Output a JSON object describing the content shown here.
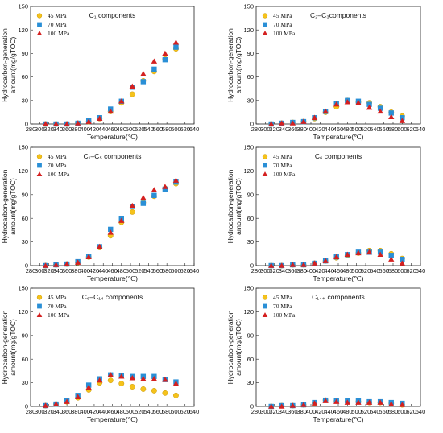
{
  "chart_data": [
    {
      "type": "scatter",
      "title": "C₁ components",
      "xlabel": "Temperature(℃)",
      "ylabel": [
        "Hydrocarbon-generation",
        "amount(mg/gTOC)"
      ],
      "xlim": [
        280,
        640
      ],
      "ylim": [
        0,
        150
      ],
      "xticks": [
        280,
        300,
        320,
        340,
        360,
        380,
        400,
        420,
        440,
        460,
        480,
        500,
        520,
        540,
        560,
        580,
        600,
        620,
        640
      ],
      "yticks": [
        0,
        30,
        60,
        90,
        120,
        150
      ],
      "legend": "top-left",
      "series": [
        {
          "name": "45 MPa",
          "marker": "circle",
          "color": "#f5c21b",
          "x": [
            313,
            336,
            360,
            384,
            408,
            432,
            456,
            480,
            504,
            528,
            552,
            576,
            600
          ],
          "y": [
            0,
            0,
            0,
            1,
            3,
            7,
            16,
            27,
            38,
            55,
            67,
            83,
            96
          ]
        },
        {
          "name": "70 MPa",
          "marker": "square",
          "color": "#2a8fd6",
          "x": [
            313,
            336,
            360,
            384,
            408,
            432,
            456,
            480,
            504,
            528,
            552,
            576,
            600
          ],
          "y": [
            0,
            0,
            0,
            1,
            4,
            8,
            19,
            29,
            47,
            54,
            70,
            82,
            98
          ]
        },
        {
          "name": "100 MPa",
          "marker": "triangle",
          "color": "#d42020",
          "x": [
            313,
            336,
            360,
            384,
            408,
            432,
            456,
            480,
            504,
            528,
            552,
            576,
            600
          ],
          "y": [
            0,
            0,
            0,
            1,
            3,
            7,
            16,
            29,
            48,
            64,
            80,
            90,
            104
          ]
        }
      ]
    },
    {
      "type": "scatter",
      "title": "C₂–C₃components",
      "xlabel": "Temperature(℃)",
      "ylabel": [
        "Hydrocarbon-generation",
        "amount(mg/gTOC)"
      ],
      "xlim": [
        280,
        640
      ],
      "ylim": [
        0,
        150
      ],
      "xticks": [
        280,
        300,
        320,
        340,
        360,
        380,
        400,
        420,
        440,
        460,
        480,
        500,
        520,
        540,
        560,
        580,
        600,
        620,
        640
      ],
      "yticks": [
        0,
        30,
        60,
        90,
        120,
        150
      ],
      "legend": "top-left",
      "series": [
        {
          "name": "45 MPa",
          "marker": "circle",
          "color": "#f5c21b",
          "x": [
            313,
            336,
            360,
            384,
            408,
            432,
            456,
            480,
            504,
            528,
            552,
            576,
            600
          ],
          "y": [
            0,
            1,
            2,
            3,
            7,
            15,
            22,
            30,
            28,
            27,
            22,
            15,
            10
          ]
        },
        {
          "name": "70 MPa",
          "marker": "square",
          "color": "#2a8fd6",
          "x": [
            313,
            336,
            360,
            384,
            408,
            432,
            456,
            480,
            504,
            528,
            552,
            576,
            600
          ],
          "y": [
            0,
            1,
            2,
            3,
            8,
            16,
            26,
            30,
            29,
            25,
            20,
            14,
            8
          ]
        },
        {
          "name": "100 MPa",
          "marker": "triangle",
          "color": "#d42020",
          "x": [
            313,
            336,
            360,
            384,
            408,
            432,
            456,
            480,
            504,
            528,
            552,
            576,
            600
          ],
          "y": [
            0,
            1,
            1,
            3,
            8,
            16,
            25,
            28,
            27,
            21,
            16,
            9,
            4
          ]
        }
      ]
    },
    {
      "type": "scatter",
      "title": "C₁–C₅ components",
      "xlabel": "Temperature(℃)",
      "ylabel": [
        "Hydrocarbon-generation",
        "amount(mg/gTOC)"
      ],
      "xlim": [
        280,
        640
      ],
      "ylim": [
        0,
        150
      ],
      "xticks": [
        280,
        300,
        320,
        340,
        360,
        380,
        400,
        420,
        440,
        460,
        480,
        500,
        520,
        540,
        560,
        580,
        600,
        620,
        640
      ],
      "yticks": [
        0,
        30,
        60,
        90,
        120,
        150
      ],
      "legend": "top-left",
      "series": [
        {
          "name": "45 MPa",
          "marker": "circle",
          "color": "#f5c21b",
          "x": [
            313,
            336,
            360,
            384,
            408,
            432,
            456,
            480,
            504,
            528,
            552,
            576,
            600
          ],
          "y": [
            0,
            1,
            2,
            4,
            11,
            23,
            38,
            55,
            68,
            80,
            88,
            98,
            104
          ]
        },
        {
          "name": "70 MPa",
          "marker": "square",
          "color": "#2a8fd6",
          "x": [
            313,
            336,
            360,
            384,
            408,
            432,
            456,
            480,
            504,
            528,
            552,
            576,
            600
          ],
          "y": [
            0,
            1,
            2,
            5,
            12,
            24,
            46,
            59,
            75,
            79,
            89,
            97,
            106
          ]
        },
        {
          "name": "100 MPa",
          "marker": "triangle",
          "color": "#d42020",
          "x": [
            313,
            336,
            360,
            384,
            408,
            432,
            456,
            480,
            504,
            528,
            552,
            576,
            600
          ],
          "y": [
            0,
            1,
            2,
            4,
            11,
            24,
            42,
            57,
            76,
            86,
            96,
            100,
            108
          ]
        }
      ]
    },
    {
      "type": "scatter",
      "title": "C₆ components",
      "xlabel": "Temperature(℃)",
      "ylabel": [
        "Hydrocarbon-generation",
        "amount(mg/gTOC)"
      ],
      "xlim": [
        280,
        640
      ],
      "ylim": [
        0,
        150
      ],
      "xticks": [
        280,
        300,
        320,
        340,
        360,
        380,
        400,
        420,
        440,
        460,
        480,
        500,
        520,
        540,
        560,
        580,
        600,
        620,
        640
      ],
      "yticks": [
        0,
        30,
        60,
        90,
        120,
        150
      ],
      "legend": "top-left",
      "series": [
        {
          "name": "45 MPa",
          "marker": "circle",
          "color": "#f5c21b",
          "x": [
            313,
            336,
            360,
            384,
            408,
            432,
            456,
            480,
            504,
            528,
            552,
            576,
            600
          ],
          "y": [
            0,
            0,
            1,
            1,
            3,
            6,
            10,
            13,
            16,
            19,
            19,
            15,
            9
          ]
        },
        {
          "name": "70 MPa",
          "marker": "square",
          "color": "#2a8fd6",
          "x": [
            313,
            336,
            360,
            384,
            408,
            432,
            456,
            480,
            504,
            528,
            552,
            576,
            600
          ],
          "y": [
            0,
            0,
            1,
            1,
            3,
            6,
            11,
            14,
            17,
            17,
            17,
            13,
            8
          ]
        },
        {
          "name": "100 MPa",
          "marker": "triangle",
          "color": "#d42020",
          "x": [
            313,
            336,
            360,
            384,
            408,
            432,
            456,
            480,
            504,
            528,
            552,
            576,
            600
          ],
          "y": [
            0,
            0,
            1,
            1,
            3,
            6,
            11,
            14,
            16,
            17,
            14,
            8,
            3
          ]
        }
      ]
    },
    {
      "type": "scatter",
      "title": "C₆–C₁₄ components",
      "xlabel": "Temperature(℃)",
      "ylabel": [
        "Hydrocarbon-generation",
        "amount(mg/gTOC)"
      ],
      "xlim": [
        280,
        640
      ],
      "ylim": [
        0,
        150
      ],
      "xticks": [
        280,
        300,
        320,
        340,
        360,
        380,
        400,
        420,
        440,
        460,
        480,
        500,
        520,
        540,
        560,
        580,
        600,
        620,
        640
      ],
      "yticks": [
        0,
        30,
        60,
        90,
        120,
        150
      ],
      "legend": "top-left",
      "series": [
        {
          "name": "45 MPa",
          "marker": "circle",
          "color": "#f5c21b",
          "x": [
            313,
            336,
            360,
            384,
            408,
            432,
            456,
            480,
            504,
            528,
            552,
            576,
            600
          ],
          "y": [
            1,
            3,
            6,
            11,
            21,
            30,
            33,
            29,
            25,
            22,
            20,
            17,
            14
          ]
        },
        {
          "name": "70 MPa",
          "marker": "square",
          "color": "#2a8fd6",
          "x": [
            313,
            336,
            360,
            384,
            408,
            432,
            456,
            480,
            504,
            528,
            552,
            576,
            600
          ],
          "y": [
            1,
            3,
            7,
            14,
            27,
            35,
            40,
            39,
            38,
            38,
            38,
            34,
            31
          ]
        },
        {
          "name": "100 MPa",
          "marker": "triangle",
          "color": "#d42020",
          "x": [
            313,
            336,
            360,
            384,
            408,
            432,
            456,
            480,
            504,
            528,
            552,
            576,
            600
          ],
          "y": [
            1,
            3,
            6,
            12,
            24,
            33,
            40,
            38,
            36,
            35,
            35,
            34,
            29
          ]
        }
      ]
    },
    {
      "type": "scatter",
      "title": "C₁₄₊ components",
      "xlabel": "Temperature(℃)",
      "ylabel": [
        "Hydrocarbon-generation",
        "amount(mg/gTOC)"
      ],
      "xlim": [
        280,
        640
      ],
      "ylim": [
        0,
        150
      ],
      "xticks": [
        280,
        300,
        320,
        340,
        360,
        380,
        400,
        420,
        440,
        460,
        480,
        500,
        520,
        540,
        560,
        580,
        600,
        620,
        640
      ],
      "yticks": [
        0,
        30,
        60,
        90,
        120,
        150
      ],
      "legend": "top-left",
      "series": [
        {
          "name": "45 MPa",
          "marker": "circle",
          "color": "#f5c21b",
          "x": [
            313,
            336,
            360,
            384,
            408,
            432,
            456,
            480,
            504,
            528,
            552,
            576,
            600
          ],
          "y": [
            0,
            1,
            1,
            2,
            4,
            8,
            7,
            6,
            6,
            5,
            5,
            4,
            2
          ]
        },
        {
          "name": "70 MPa",
          "marker": "square",
          "color": "#2a8fd6",
          "x": [
            313,
            336,
            360,
            384,
            408,
            432,
            456,
            480,
            504,
            528,
            552,
            576,
            600
          ],
          "y": [
            0,
            1,
            1,
            2,
            5,
            8,
            7,
            7,
            7,
            6,
            6,
            5,
            4
          ]
        },
        {
          "name": "100 MPa",
          "marker": "triangle",
          "color": "#d42020",
          "x": [
            313,
            336,
            360,
            384,
            408,
            432,
            456,
            480,
            504,
            528,
            552,
            576,
            600
          ],
          "y": [
            0,
            0,
            1,
            2,
            4,
            7,
            6,
            5,
            5,
            5,
            5,
            3,
            2
          ]
        }
      ]
    }
  ]
}
